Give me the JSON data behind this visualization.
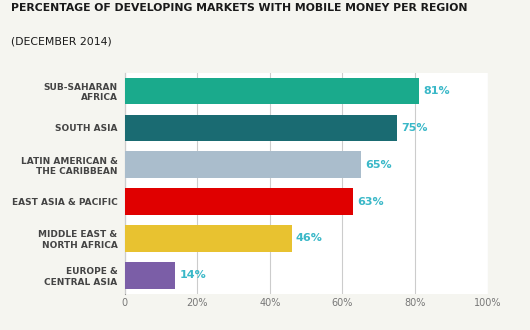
{
  "title_line1": "PERCENTAGE OF DEVELOPING MARKETS WITH MOBILE MONEY PER REGION",
  "title_line2": "(DECEMBER 2014)",
  "categories": [
    "EUROPE &\nCENTRAL ASIA",
    "MIDDLE EAST &\nNORTH AFRICA",
    "EAST ASIA & PACIFIC",
    "LATIN AMERICAN &\nTHE CARIBBEAN",
    "SOUTH ASIA",
    "SUB-SAHARAN\nAFRICA"
  ],
  "values": [
    14,
    46,
    63,
    65,
    75,
    81
  ],
  "colors": [
    "#7b5ea7",
    "#e8c230",
    "#e00000",
    "#aabdcc",
    "#1a6b72",
    "#1aaa8c"
  ],
  "label_color": "#3ab8c8",
  "title_color": "#1a1a1a",
  "subtitle_color": "#1a1a1a",
  "xlim": [
    0,
    100
  ],
  "xticks": [
    0,
    20,
    40,
    60,
    80,
    100
  ],
  "xtick_labels": [
    "0",
    "20%",
    "40%",
    "60%",
    "80%",
    "100%"
  ],
  "background_color": "#f5f5f0",
  "grid_color": "#d0d0d0",
  "bar_gap_color": "#ffffff"
}
